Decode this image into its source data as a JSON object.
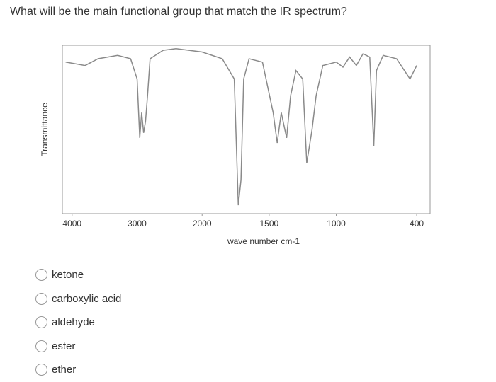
{
  "question": "What will be the main functional group that match the IR spectrum?",
  "chart_data": {
    "type": "line",
    "y_label": "Transmittance",
    "x_label": "wave number cm-1",
    "xlim": [
      4150,
      300
    ],
    "x_scale_change": 2000,
    "xticks": [
      4000,
      3000,
      2000,
      1500,
      1000,
      400
    ],
    "ylim": [
      0,
      100
    ],
    "series": [
      {
        "name": null,
        "color": "#8a8a8a",
        "x": [
          4100,
          3800,
          3600,
          3300,
          3100,
          3000,
          2960,
          2930,
          2900,
          2870,
          2840,
          2800,
          2600,
          2400,
          2200,
          2000,
          1850,
          1760,
          1730,
          1710,
          1690,
          1650,
          1550,
          1470,
          1440,
          1410,
          1370,
          1340,
          1300,
          1250,
          1220,
          1180,
          1150,
          1100,
          1000,
          950,
          900,
          850,
          800,
          750,
          720,
          700,
          650,
          550,
          450,
          400
        ],
        "values": [
          90,
          88,
          92,
          94,
          92,
          80,
          45,
          60,
          48,
          55,
          70,
          92,
          97,
          98,
          97,
          96,
          92,
          80,
          5,
          20,
          80,
          92,
          90,
          60,
          42,
          60,
          45,
          70,
          85,
          80,
          30,
          50,
          70,
          88,
          90,
          87,
          93,
          88,
          95,
          93,
          40,
          85,
          94,
          92,
          80,
          88
        ]
      }
    ]
  },
  "options": [
    "ketone",
    "carboxylic acid",
    "aldehyde",
    "ester",
    "ether"
  ]
}
